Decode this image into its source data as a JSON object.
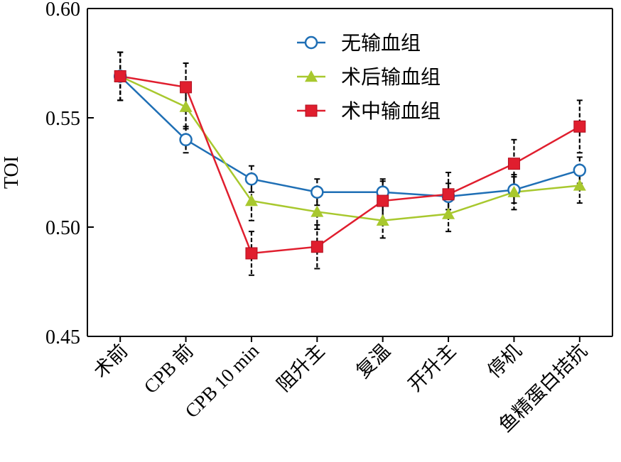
{
  "chart_data": {
    "type": "line",
    "title": "",
    "xlabel": "",
    "ylabel": "TOI",
    "ylim": [
      0.45,
      0.6
    ],
    "yticks": [
      "0.45",
      "0.50",
      "0.55",
      "0.60"
    ],
    "ytick_values": [
      0.45,
      0.5,
      0.55,
      0.6
    ],
    "grid": false,
    "legend_position": "top-right",
    "categories": [
      "术前",
      "CPB 前",
      "CPB 10 min",
      "阻升主",
      "复温",
      "开升主",
      "停机",
      "鱼精蛋白拮抗"
    ],
    "series": [
      {
        "name": "无输血组",
        "color": "#1f6fb5",
        "marker": "circle-open",
        "values": [
          0.569,
          0.54,
          0.522,
          0.516,
          0.516,
          0.514,
          0.517,
          0.526
        ],
        "errors": [
          0.011,
          0.006,
          0.006,
          0.006,
          0.006,
          0.006,
          0.006,
          0.006
        ]
      },
      {
        "name": "术后输血组",
        "color": "#a8c82e",
        "marker": "triangle",
        "values": [
          0.569,
          0.555,
          0.512,
          0.507,
          0.503,
          0.506,
          0.516,
          0.519
        ],
        "errors": [
          0.011,
          0.01,
          0.009,
          0.008,
          0.008,
          0.008,
          0.008,
          0.008
        ]
      },
      {
        "name": "术中输血组",
        "color": "#e01e2e",
        "marker": "square",
        "values": [
          0.569,
          0.564,
          0.488,
          0.491,
          0.512,
          0.515,
          0.529,
          0.546
        ],
        "errors": [
          0.011,
          0.011,
          0.01,
          0.01,
          0.009,
          0.01,
          0.011,
          0.012
        ]
      }
    ]
  }
}
